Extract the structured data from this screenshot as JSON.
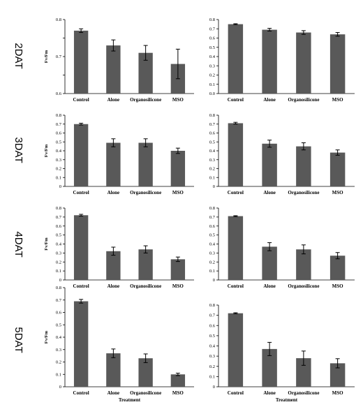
{
  "chart_data": [
    {
      "type": "bar",
      "row_label": "2DAT",
      "ylabel": "Fv/Fm",
      "xlabel": "",
      "categories": [
        "Control",
        "Alone",
        "Organosilicone",
        "MSO"
      ],
      "values": [
        0.77,
        0.73,
        0.71,
        0.68
      ],
      "errors": [
        0.005,
        0.015,
        0.02,
        0.04
      ],
      "ylim": [
        0.6,
        0.8
      ],
      "yticks": [
        0.6,
        0.65,
        0.7,
        0.75,
        0.8
      ],
      "ytick_labels": [
        "0.6",
        "",
        "0.7",
        "",
        "0.8"
      ]
    },
    {
      "type": "bar",
      "row_label": "",
      "ylabel": "",
      "xlabel": "",
      "categories": [
        "Control",
        "Alone",
        "Organosilicone",
        "MSO"
      ],
      "values": [
        0.75,
        0.69,
        0.66,
        0.64
      ],
      "errors": [
        0.005,
        0.015,
        0.02,
        0.02
      ],
      "ylim": [
        0,
        0.8
      ],
      "yticks": [
        0,
        0.1,
        0.2,
        0.3,
        0.4,
        0.5,
        0.6,
        0.7,
        0.8
      ],
      "ytick_labels": [
        "0.0",
        "0.1",
        "0.2",
        "0.3",
        "0.4",
        "0.5",
        "0.6",
        "0.7",
        "0.8"
      ]
    },
    {
      "type": "bar",
      "row_label": "3DAT",
      "ylabel": "Fv/Fm",
      "xlabel": "",
      "categories": [
        "Control",
        "Alone",
        "Organosilicone",
        "MSO"
      ],
      "values": [
        0.7,
        0.49,
        0.49,
        0.4
      ],
      "errors": [
        0.01,
        0.045,
        0.045,
        0.03
      ],
      "ylim": [
        0,
        0.8
      ],
      "yticks": [
        0,
        0.1,
        0.2,
        0.3,
        0.4,
        0.5,
        0.6,
        0.7,
        0.8
      ],
      "ytick_labels": [
        "0",
        "0.1",
        "0.2",
        "0.3",
        "0.4",
        "0.5",
        "0.6",
        "0.7",
        "0.8"
      ]
    },
    {
      "type": "bar",
      "row_label": "",
      "ylabel": "",
      "xlabel": "",
      "categories": [
        "Control",
        "Alone",
        "Organosilicone",
        "MSO"
      ],
      "values": [
        0.71,
        0.48,
        0.45,
        0.38
      ],
      "errors": [
        0.01,
        0.04,
        0.04,
        0.03
      ],
      "ylim": [
        0,
        0.8
      ],
      "yticks": [
        0,
        0.1,
        0.2,
        0.3,
        0.4,
        0.5,
        0.6,
        0.7,
        0.8
      ],
      "ytick_labels": [
        "0",
        "0.1",
        "0.2",
        "0.3",
        "0.4",
        "0.5",
        "0.6",
        "0.7",
        "0.8"
      ]
    },
    {
      "type": "bar",
      "row_label": "4DAT",
      "ylabel": "Fv/Fm",
      "xlabel": "",
      "categories": [
        "Control",
        "Alone",
        "Organosilicone",
        "MSO"
      ],
      "values": [
        0.72,
        0.32,
        0.34,
        0.23
      ],
      "errors": [
        0.01,
        0.045,
        0.04,
        0.025
      ],
      "ylim": [
        0,
        0.8
      ],
      "yticks": [
        0,
        0.1,
        0.2,
        0.3,
        0.4,
        0.5,
        0.6,
        0.7,
        0.8
      ],
      "ytick_labels": [
        "0",
        "0.1",
        "0.2",
        "0.3",
        "0.4",
        "0.5",
        "0.6",
        "0.7",
        "0.8"
      ]
    },
    {
      "type": "bar",
      "row_label": "",
      "ylabel": "",
      "xlabel": "",
      "categories": [
        "Control",
        "Alone",
        "Organosilicone",
        "MSO"
      ],
      "values": [
        0.71,
        0.37,
        0.34,
        0.27
      ],
      "errors": [
        0.005,
        0.045,
        0.05,
        0.035
      ],
      "ylim": [
        0,
        0.8
      ],
      "yticks": [
        0,
        0.1,
        0.2,
        0.3,
        0.4,
        0.5,
        0.6,
        0.7,
        0.8
      ],
      "ytick_labels": [
        "0",
        "0.1",
        "0.2",
        "0.3",
        "0.4",
        "0.5",
        "0.6",
        "0.7",
        "0.8"
      ]
    },
    {
      "type": "bar",
      "row_label": "5DAT",
      "ylabel": "Fv/Fm",
      "xlabel": "Treatment",
      "categories": [
        "Control",
        "Alone",
        "Organosilicone",
        "MSO"
      ],
      "values": [
        0.69,
        0.27,
        0.23,
        0.1
      ],
      "errors": [
        0.015,
        0.035,
        0.035,
        0.01
      ],
      "ylim": [
        0,
        0.8
      ],
      "yticks": [
        0,
        0.1,
        0.2,
        0.3,
        0.4,
        0.5,
        0.6,
        0.7,
        0.8
      ],
      "ytick_labels": [
        "0",
        "0.1",
        "0.2",
        "0.3",
        "0.4",
        "0.5",
        "0.6",
        "0.7",
        "0.8"
      ]
    },
    {
      "type": "bar",
      "row_label": "",
      "ylabel": "",
      "xlabel": "Treatment",
      "categories": [
        "Control",
        "Alone",
        "Organosilicone",
        "MSO"
      ],
      "values": [
        0.72,
        0.37,
        0.28,
        0.23
      ],
      "errors": [
        0.005,
        0.065,
        0.07,
        0.045
      ],
      "ylim": [
        0,
        0.8
      ],
      "yticks": [
        0,
        0.1,
        0.2,
        0.3,
        0.4,
        0.5,
        0.6,
        0.7,
        0.8
      ],
      "ytick_labels": [
        "0",
        "0.1",
        "0.2",
        "0.3",
        "0.4",
        "0.5",
        "0.6",
        "0.7",
        "0.8"
      ]
    }
  ]
}
